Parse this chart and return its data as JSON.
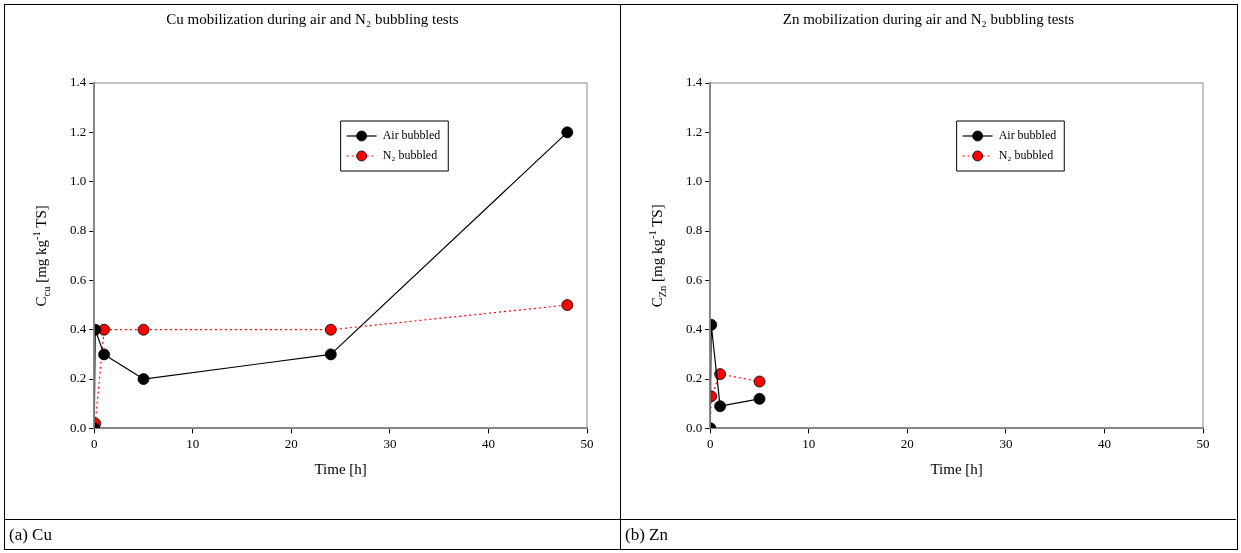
{
  "chart_data": [
    {
      "type": "line",
      "title": "Cu mobilization during air and N₂ bubbling tests",
      "xlabel": "Time [h]",
      "ylabel": "C$_{cu}$ [mg kg$^{-1}$ TS]",
      "xlim": [
        0,
        50
      ],
      "xticks": [
        0,
        10,
        20,
        30,
        40,
        50
      ],
      "ylim": [
        0,
        1.4
      ],
      "yticks": [
        {
          "value": 0,
          "label": "0.0"
        },
        {
          "value": 0.2,
          "label": "0.2"
        },
        {
          "value": 0.4,
          "label": "0.4"
        },
        {
          "value": 0.6,
          "label": "0.6"
        },
        {
          "value": 0.8,
          "label": "0.8"
        },
        {
          "value": 1,
          "label": "1.0"
        },
        {
          "value": 1.2,
          "label": "1.2"
        },
        {
          "value": 1.4,
          "label": "1.4"
        }
      ],
      "grid": false,
      "legend": "top right",
      "marker": "circle",
      "annotations": [
        "(a) Cu"
      ],
      "series": [
        {
          "name": "Air bubbled",
          "color": "#000000",
          "line_style": "solid",
          "x": [
            0,
            0.1,
            1,
            5,
            24,
            48
          ],
          "values": [
            0,
            0.4,
            0.3,
            0.2,
            0.3,
            1.2
          ]
        },
        {
          "name": "N₂ bubbled",
          "color": "#ff0000",
          "line_style": "dotted",
          "x": [
            0,
            0.1,
            1,
            5,
            24,
            48
          ],
          "values": [
            0,
            0.02,
            0.4,
            0.4,
            0.4,
            0.5
          ]
        }
      ]
    },
    {
      "type": "line",
      "title": "Zn mobilization during air and N₂ bubbling tests",
      "xlabel": "Time [h]",
      "ylabel": "C$_{Zn}$ [mg kg$^{-1}$ TS]",
      "xlim": [
        0,
        50
      ],
      "xticks": [
        0,
        10,
        20,
        30,
        40,
        50
      ],
      "ylim": [
        0,
        1.4
      ],
      "yticks": [
        {
          "value": 0,
          "label": "0.0"
        },
        {
          "value": 0.2,
          "label": "0.2"
        },
        {
          "value": 0.4,
          "label": "0.4"
        },
        {
          "value": 0.6,
          "label": "0.6"
        },
        {
          "value": 0.8,
          "label": "0.8"
        },
        {
          "value": 1,
          "label": "1.0"
        },
        {
          "value": 1.2,
          "label": "1.2"
        },
        {
          "value": 1.4,
          "label": "1.4"
        }
      ],
      "grid": false,
      "legend": "top right",
      "marker": "circle",
      "annotations": [
        "(b) Zn"
      ],
      "series": [
        {
          "name": "Air bubbled",
          "color": "#000000",
          "line_style": "solid",
          "x": [
            0,
            0.1,
            1,
            5
          ],
          "values": [
            0,
            0.42,
            0.09,
            0.12
          ]
        },
        {
          "name": "N₂ bubbled",
          "color": "#ff0000",
          "line_style": "dotted",
          "x": [
            0,
            0.1,
            1,
            5
          ],
          "values": [
            0,
            0.13,
            0.22,
            0.19
          ]
        }
      ]
    }
  ]
}
